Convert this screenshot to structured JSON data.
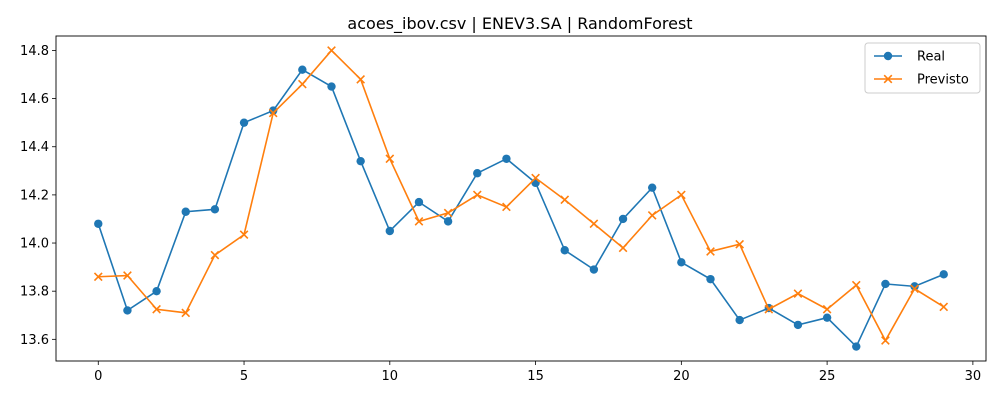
{
  "chart_data": {
    "type": "line",
    "title": "acoes_ibov.csv | ENEV3.SA | RandomForest",
    "xlabel": "",
    "ylabel": "",
    "xlim": [
      -1.45,
      30.45
    ],
    "ylim": [
      13.51,
      14.86
    ],
    "xticks": [
      0,
      5,
      10,
      15,
      20,
      25,
      30
    ],
    "yticks": [
      13.6,
      13.8,
      14.0,
      14.2,
      14.4,
      14.6,
      14.8
    ],
    "grid": false,
    "legend_position": "top-right",
    "x": [
      0,
      1,
      2,
      3,
      4,
      5,
      6,
      7,
      8,
      9,
      10,
      11,
      12,
      13,
      14,
      15,
      16,
      17,
      18,
      19,
      20,
      21,
      22,
      23,
      24,
      25,
      26,
      27,
      28,
      29
    ],
    "series": [
      {
        "name": "Real",
        "color": "#1f77b4",
        "marker": "circle",
        "values": [
          14.08,
          13.72,
          13.8,
          14.13,
          14.14,
          14.5,
          14.55,
          14.72,
          14.65,
          14.34,
          14.05,
          14.17,
          14.09,
          14.29,
          14.35,
          14.25,
          13.97,
          13.89,
          14.1,
          14.23,
          13.92,
          13.85,
          13.68,
          13.73,
          13.66,
          13.69,
          13.57,
          13.83,
          13.82,
          13.87
        ]
      },
      {
        "name": "Previsto",
        "color": "#ff7f0e",
        "marker": "x",
        "values": [
          13.86,
          13.865,
          13.725,
          13.71,
          13.95,
          14.035,
          14.54,
          14.66,
          14.8,
          14.68,
          14.35,
          14.09,
          14.125,
          14.2,
          14.15,
          14.27,
          14.18,
          14.08,
          13.98,
          14.115,
          14.2,
          13.965,
          13.995,
          13.725,
          13.79,
          13.725,
          13.825,
          13.595,
          13.81,
          13.735
        ]
      }
    ]
  }
}
